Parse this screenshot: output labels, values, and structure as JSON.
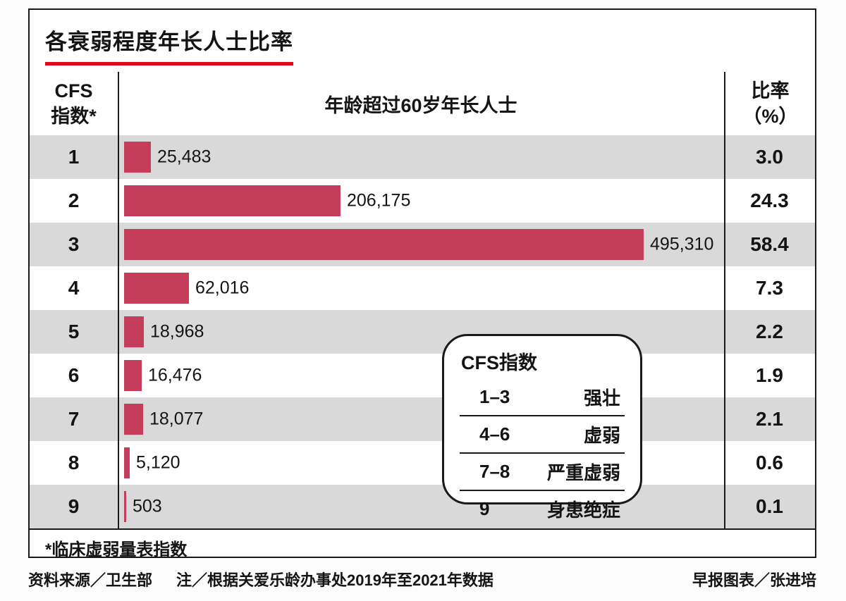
{
  "page": {
    "title": "各衰弱程度年长人士比率",
    "footnote": "*临床虚弱量表指数",
    "source": "资料来源／卫生部",
    "note": "注／根据关爱乐龄办事处2019年至2021年数据",
    "credit": "早报图表／张进培"
  },
  "chart_data": {
    "type": "bar",
    "title": "各衰弱程度年长人士比率",
    "orientation": "horizontal",
    "column_headers": {
      "left_line1": "CFS",
      "left_line2": "指数*",
      "center": "年龄超过60岁年长人士",
      "right_line1": "比率",
      "right_line2": "（%）"
    },
    "categories": [
      "1",
      "2",
      "3",
      "4",
      "5",
      "6",
      "7",
      "8",
      "9"
    ],
    "values": [
      25483,
      206175,
      495310,
      62016,
      18968,
      16476,
      18077,
      5120,
      503
    ],
    "value_labels": [
      "25,483",
      "206,175",
      "495,310",
      "62,016",
      "18,968",
      "16,476",
      "18,077",
      "5,120",
      "503"
    ],
    "percentages": [
      "3.0",
      "24.3",
      "58.4",
      "7.3",
      "2.2",
      "1.9",
      "2.1",
      "0.6",
      "0.1"
    ],
    "max_value": 495310,
    "bar_color": "#c43d5b",
    "row_stripe_color": "#d9d9d9",
    "accent_underline_color": "#e0071c",
    "grid": false,
    "legend": {
      "title": "CFS指数",
      "position": "overlay-center-right",
      "rows": [
        {
          "range": "1–3",
          "label": "强壮"
        },
        {
          "range": "4–6",
          "label": "虚弱"
        },
        {
          "range": "7–8",
          "label": "严重虚弱"
        },
        {
          "range": "9",
          "label": "身患绝症"
        }
      ]
    }
  }
}
